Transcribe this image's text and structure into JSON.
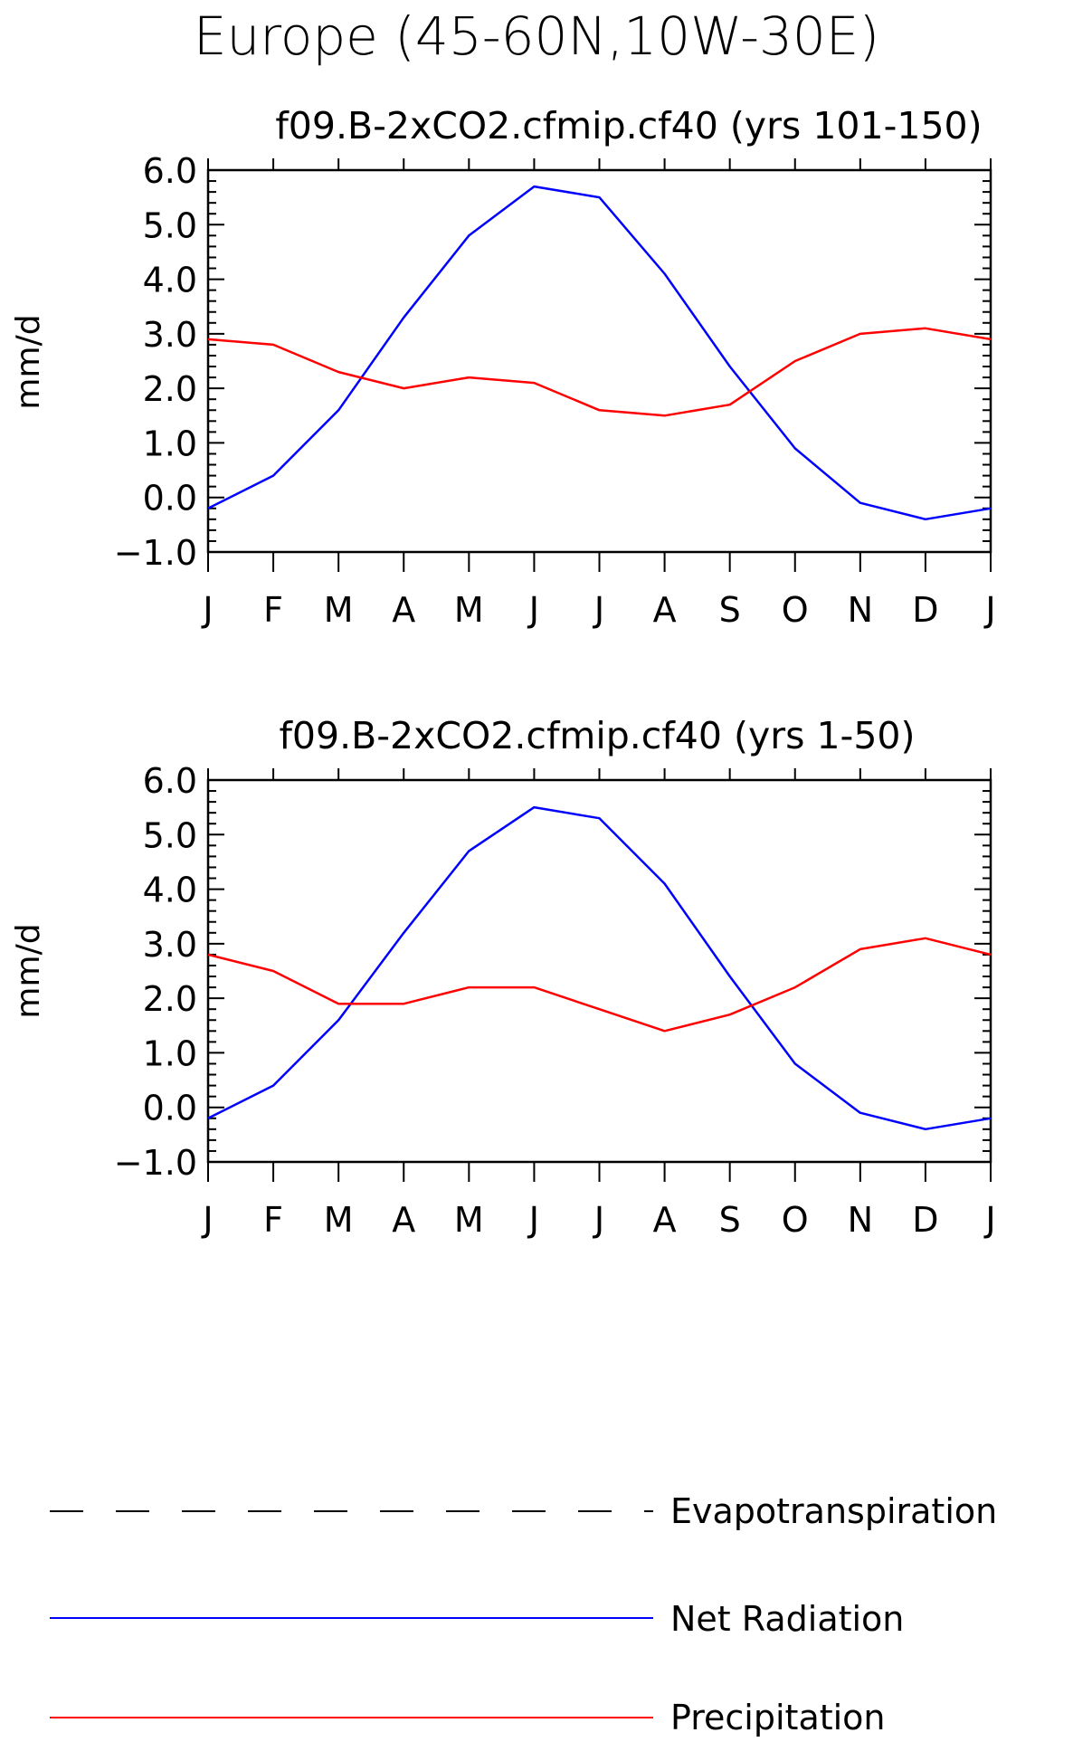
{
  "figure_title": "Europe (45-60N,10W-30E)",
  "chart_data": [
    {
      "type": "line",
      "title": "f09.B-2xCO2.cfmip.cf40 (yrs 101-150)",
      "xlabel": "",
      "ylabel": "mm/d",
      "ylim": [
        -1.0,
        6.0
      ],
      "yticks": [
        "6.0",
        "5.0",
        "4.0",
        "3.0",
        "2.0",
        "1.0",
        "0.0",
        "-1.0"
      ],
      "categories": [
        "J",
        "F",
        "M",
        "A",
        "M",
        "J",
        "J",
        "A",
        "S",
        "O",
        "N",
        "D",
        "J"
      ],
      "grid": false,
      "series": [
        {
          "name": "Net Radiation",
          "color": "#0000ff",
          "values": [
            -0.2,
            0.4,
            1.6,
            3.3,
            4.8,
            5.7,
            5.5,
            4.1,
            2.4,
            0.9,
            -0.1,
            -0.4,
            -0.2
          ]
        },
        {
          "name": "Precipitation",
          "color": "#ff0000",
          "values": [
            2.9,
            2.8,
            2.3,
            2.0,
            2.2,
            2.1,
            1.6,
            1.5,
            1.7,
            2.5,
            3.0,
            3.1,
            2.9
          ]
        }
      ]
    },
    {
      "type": "line",
      "title": "f09.B-2xCO2.cfmip.cf40 (yrs 1-50)",
      "xlabel": "",
      "ylabel": "mm/d",
      "ylim": [
        -1.0,
        6.0
      ],
      "yticks": [
        "6.0",
        "5.0",
        "4.0",
        "3.0",
        "2.0",
        "1.0",
        "0.0",
        "-1.0"
      ],
      "categories": [
        "J",
        "F",
        "M",
        "A",
        "M",
        "J",
        "J",
        "A",
        "S",
        "O",
        "N",
        "D",
        "J"
      ],
      "grid": false,
      "series": [
        {
          "name": "Net Radiation",
          "color": "#0000ff",
          "values": [
            -0.2,
            0.4,
            1.6,
            3.2,
            4.7,
            5.5,
            5.3,
            4.1,
            2.4,
            0.8,
            -0.1,
            -0.4,
            -0.2
          ]
        },
        {
          "name": "Precipitation",
          "color": "#ff0000",
          "values": [
            2.8,
            2.5,
            1.9,
            1.9,
            2.2,
            2.2,
            1.8,
            1.4,
            1.7,
            2.2,
            2.9,
            3.1,
            2.8
          ]
        }
      ]
    }
  ],
  "legend": [
    {
      "label": "Evapotranspiration",
      "color": "#000000",
      "dashed": true
    },
    {
      "label": "Net Radiation",
      "color": "#0000ff",
      "dashed": false
    },
    {
      "label": "Precipitation",
      "color": "#ff0000",
      "dashed": false
    }
  ]
}
